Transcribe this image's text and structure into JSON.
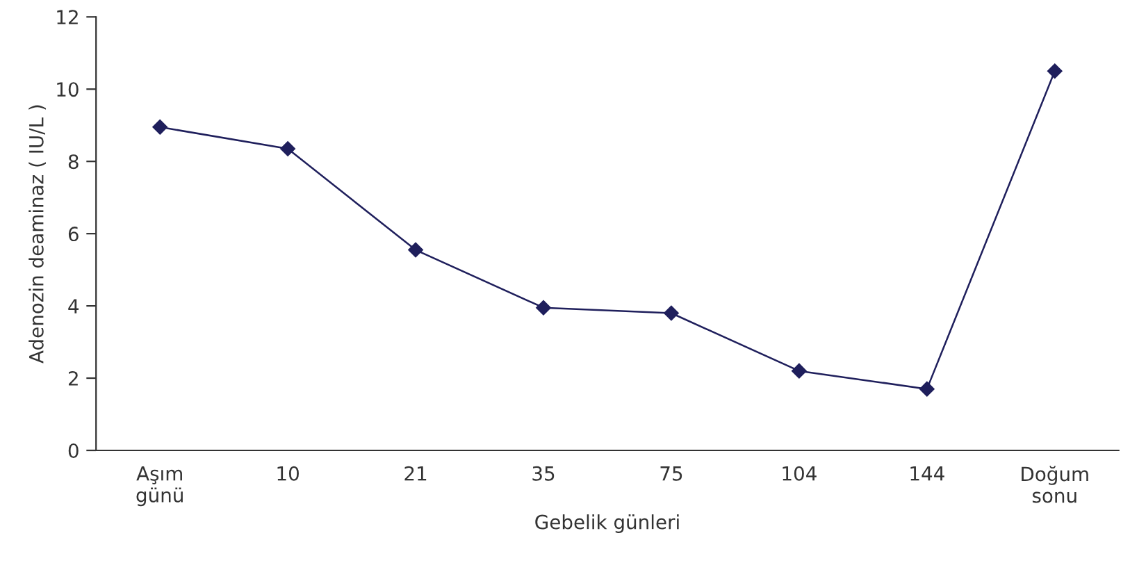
{
  "chart_data": {
    "type": "line",
    "xlabel": "Gebelik günleri",
    "ylabel": "Adenozin deaminaz ( IU/L )",
    "categories": [
      "Aşım\ngünü",
      "10",
      "21",
      "35",
      "75",
      "104",
      "144",
      "Doğum\nsonu"
    ],
    "series": [
      {
        "color": "#1f1f5c",
        "values": [
          8.95,
          8.35,
          5.55,
          3.95,
          3.8,
          2.2,
          1.7,
          10.5
        ]
      }
    ],
    "ylim": [
      0,
      12
    ],
    "yticks": [
      0,
      2,
      4,
      6,
      8,
      10,
      12
    ],
    "marker": "diamond",
    "line_style": "solid",
    "grid": false,
    "legend": false
  }
}
